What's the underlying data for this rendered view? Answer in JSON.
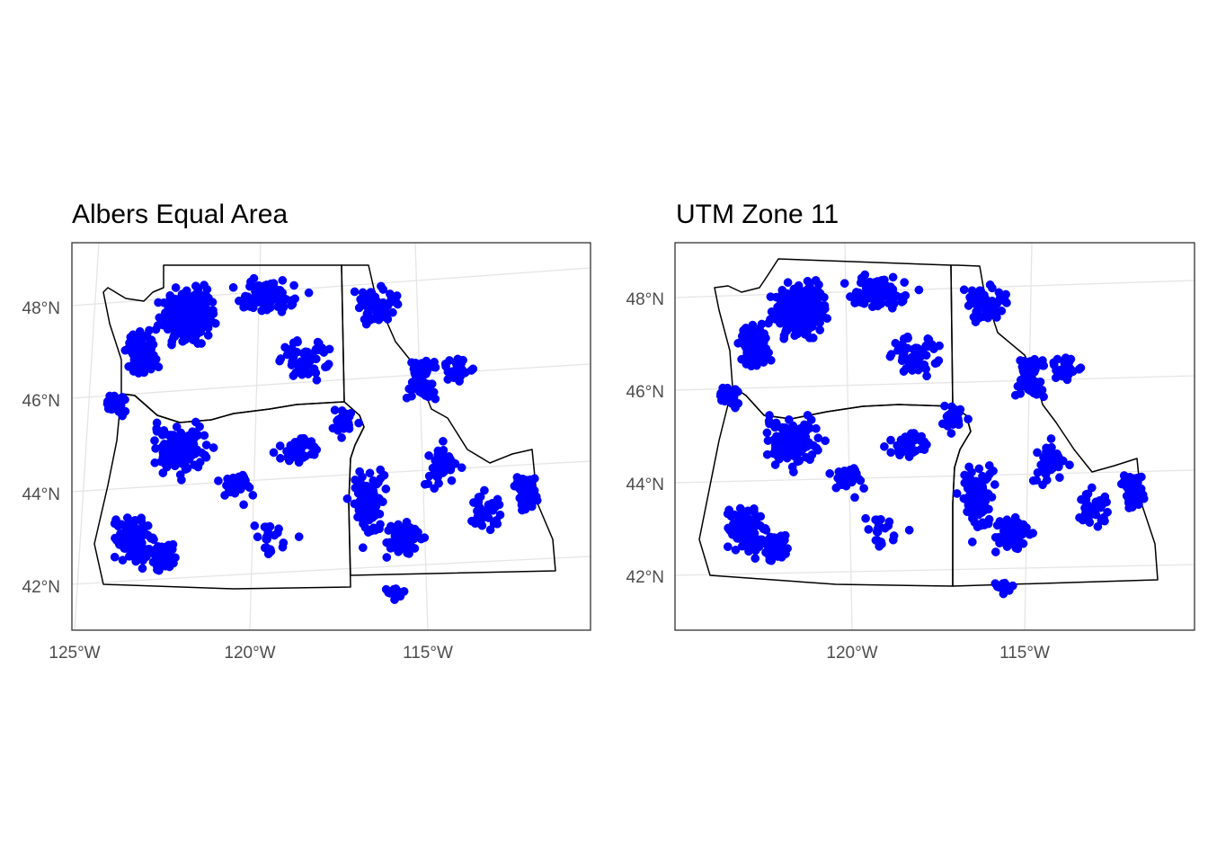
{
  "map_panels": [
    {
      "id": "albers",
      "title": "Albers Equal Area",
      "lat_ticks": [
        "48°N",
        "46°N",
        "44°N",
        "42°N"
      ],
      "lon_ticks": [
        "125°W",
        "120°W",
        "115°W"
      ]
    },
    {
      "id": "utm",
      "title": "UTM Zone 11",
      "lat_ticks": [
        "48°N",
        "46°N",
        "44°N",
        "42°N"
      ],
      "lon_ticks": [
        "120°W",
        "115°W"
      ]
    }
  ],
  "style": {
    "point_color": "#0000ff",
    "boundary_color": "#000000",
    "graticule_color": "#e5e5e5",
    "background": "#ffffff"
  },
  "layers": [
    "state boundaries",
    "sample sites (points)",
    "graticule"
  ]
}
